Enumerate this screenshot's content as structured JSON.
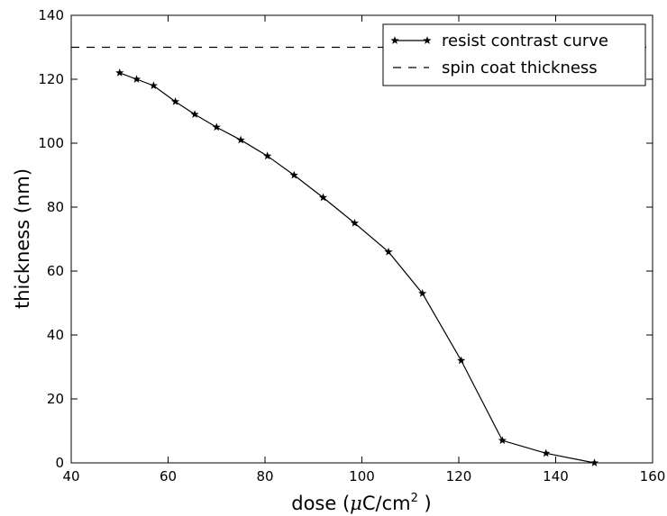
{
  "chart_data": {
    "type": "line",
    "title": "",
    "xlabel": "dose (μC/cm²)",
    "xlabel_parts": {
      "prefix": "dose (",
      "mu": "μ",
      "unit": "C/cm",
      "sup": "2",
      "suffix": " )"
    },
    "ylabel": "thickness (nm)",
    "xlim": [
      40,
      160
    ],
    "ylim": [
      0,
      140
    ],
    "x_ticks": [
      40,
      60,
      80,
      100,
      120,
      140,
      160
    ],
    "y_ticks": [
      0,
      20,
      40,
      60,
      80,
      100,
      120,
      140
    ],
    "grid": false,
    "legend": {
      "placement": "top-right",
      "entries": [
        "resist contrast curve",
        "spin coat thickness"
      ]
    },
    "series": [
      {
        "name": "resist contrast curve",
        "style": "solid-star",
        "color": "#000000",
        "x": [
          50,
          53.5,
          57,
          61.5,
          65.5,
          70,
          75,
          80.5,
          86,
          92,
          98.5,
          105.5,
          112.5,
          120.5,
          129,
          138,
          148
        ],
        "y": [
          122,
          120,
          118,
          113,
          109,
          105,
          101,
          96,
          90,
          83,
          75,
          66,
          53,
          32,
          7,
          3,
          0
        ]
      },
      {
        "name": "spin coat thickness",
        "style": "dashed",
        "color": "#000000",
        "x": [
          40,
          160
        ],
        "y": [
          130,
          130
        ]
      }
    ]
  }
}
